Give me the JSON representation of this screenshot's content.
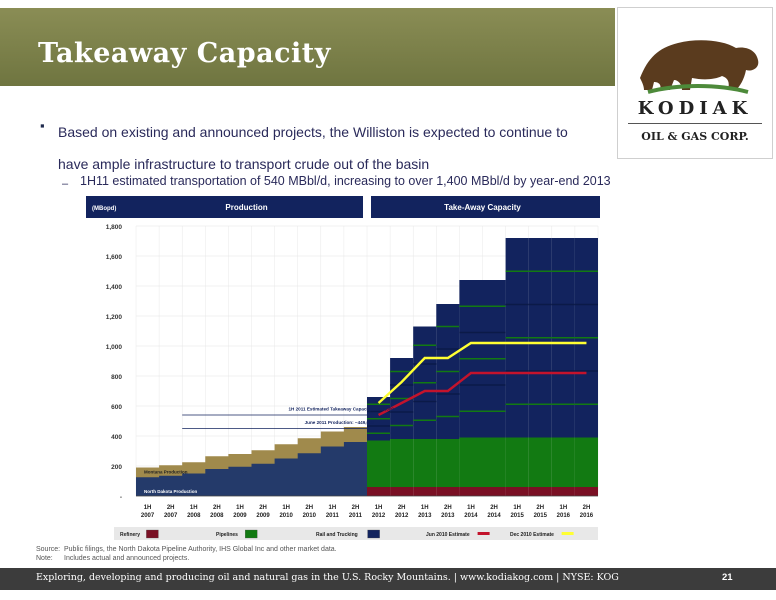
{
  "slide": {
    "title": "Takeaway Capacity",
    "bullet1": "Based on existing and announced projects, the Williston is expected to continue to have ample infrastructure to transport crude out of the basin",
    "bullet2": "1H11 estimated transportation of 540 MBbl/d, increasing to over 1,400 MBbl/d by year-end 2013",
    "page_number": "21"
  },
  "logo": {
    "name": "KODIAK",
    "subtitle": "OIL & GAS CORP."
  },
  "footer": {
    "text": "Exploring, developing and producing oil and natural gas in the U.S. Rocky Mountains.  |  www.kodiakog.com  |  NYSE: KOG"
  },
  "notes": {
    "source_label": "Source:",
    "source_text": "Public filings, the North Dakota Pipeline Authority, IHS Global Inc and other market data.",
    "note_label": "Note:",
    "note_text": "Includes actual and announced projects."
  },
  "colors": {
    "header_band": "#7a7f48",
    "navy": "#12235e",
    "pipeline_green": "#127a12",
    "refinery": "#7a1024",
    "montana": "#a08a4c",
    "north_dakota": "#243a6a",
    "jun_estimate": "#c3132c",
    "dec_estimate": "#ffff33"
  },
  "chart_data": {
    "type": "area",
    "unit_label": "(MBopd)",
    "section_headers": [
      "Production",
      "Take-Away Capacity"
    ],
    "y_ticks": [
      "1,800",
      "1,600",
      "1,400",
      "1,200",
      "1,000",
      "800",
      "600",
      "400",
      "200",
      "-"
    ],
    "ylim": [
      0,
      1800
    ],
    "categories": [
      [
        "1H",
        "2007"
      ],
      [
        "2H",
        "2007"
      ],
      [
        "1H",
        "2008"
      ],
      [
        "2H",
        "2008"
      ],
      [
        "1H",
        "2009"
      ],
      [
        "2H",
        "2009"
      ],
      [
        "1H",
        "2010"
      ],
      [
        "2H",
        "2010"
      ],
      [
        "1H",
        "2011"
      ],
      [
        "2H",
        "2011"
      ],
      [
        "1H",
        "2012"
      ],
      [
        "2H",
        "2012"
      ],
      [
        "1H",
        "2013"
      ],
      [
        "2H",
        "2013"
      ],
      [
        "1H",
        "2014"
      ],
      [
        "2H",
        "2014"
      ],
      [
        "1H",
        "2015"
      ],
      [
        "2H",
        "2015"
      ],
      [
        "1H",
        "2016"
      ],
      [
        "2H",
        "2016"
      ]
    ],
    "production": {
      "north_dakota": [
        125,
        135,
        150,
        180,
        195,
        215,
        250,
        285,
        330,
        360
      ],
      "montana": [
        65,
        70,
        75,
        85,
        85,
        90,
        95,
        100,
        100,
        100
      ],
      "labels": [
        "Montana Production",
        "North Dakota Production"
      ]
    },
    "capacity": {
      "start_index": 10,
      "refinery": [
        60,
        60,
        60,
        60,
        60,
        60,
        60,
        60,
        60,
        60
      ],
      "pipelines": [
        310,
        320,
        320,
        320,
        330,
        330,
        330,
        330,
        330,
        330
      ],
      "rail": [
        290,
        540,
        750,
        900,
        1050,
        1050,
        1330,
        1330,
        1330,
        1330
      ]
    },
    "estimates": {
      "jun_2010": [
        540,
        620,
        700,
        700,
        820,
        820,
        820,
        820,
        820,
        820
      ],
      "dec_2010": [
        620,
        760,
        920,
        920,
        1020,
        1020,
        1020,
        1020,
        1020,
        1020
      ]
    },
    "annotations": {
      "takeaway": "1H 2011 Estimated Takeaway Capacity: ~543,000",
      "production": "June 2011 Production: ~449,000"
    },
    "legend": [
      {
        "label": "Refinery",
        "color": "#7a1024"
      },
      {
        "label": "Pipelines",
        "color": "#127a12"
      },
      {
        "label": "Rail and Trucking",
        "color": "#12235e"
      },
      {
        "label": "Jun 2010 Estimate",
        "color": "#c3132c"
      },
      {
        "label": "Dec 2010 Estimate",
        "color": "#ffff33"
      }
    ],
    "legend_placement": "bottom",
    "grid": true
  }
}
